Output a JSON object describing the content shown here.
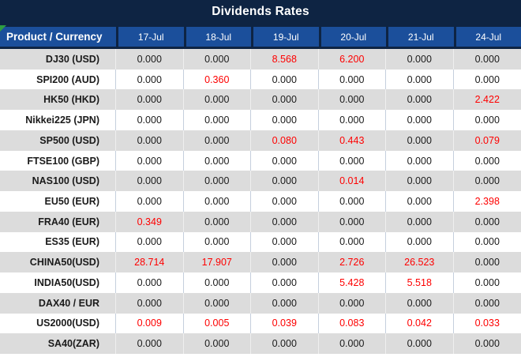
{
  "title": "Dividends Rates",
  "header": {
    "product_label": "Product / Currency",
    "dates": [
      "17-Jul",
      "18-Jul",
      "19-Jul",
      "20-Jul",
      "21-Jul",
      "24-Jul"
    ]
  },
  "rows": [
    {
      "product": "DJ30 (USD)",
      "values": [
        "0.000",
        "0.000",
        "8.568",
        "6.200",
        "0.000",
        "0.000"
      ]
    },
    {
      "product": "SPI200 (AUD)",
      "values": [
        "0.000",
        "0.360",
        "0.000",
        "0.000",
        "0.000",
        "0.000"
      ]
    },
    {
      "product": "HK50 (HKD)",
      "values": [
        "0.000",
        "0.000",
        "0.000",
        "0.000",
        "0.000",
        "2.422"
      ]
    },
    {
      "product": "Nikkei225 (JPN)",
      "values": [
        "0.000",
        "0.000",
        "0.000",
        "0.000",
        "0.000",
        "0.000"
      ]
    },
    {
      "product": "SP500 (USD)",
      "values": [
        "0.000",
        "0.000",
        "0.080",
        "0.443",
        "0.000",
        "0.079"
      ]
    },
    {
      "product": "FTSE100 (GBP)",
      "values": [
        "0.000",
        "0.000",
        "0.000",
        "0.000",
        "0.000",
        "0.000"
      ]
    },
    {
      "product": "NAS100 (USD)",
      "values": [
        "0.000",
        "0.000",
        "0.000",
        "0.014",
        "0.000",
        "0.000"
      ]
    },
    {
      "product": "EU50 (EUR)",
      "values": [
        "0.000",
        "0.000",
        "0.000",
        "0.000",
        "0.000",
        "2.398"
      ]
    },
    {
      "product": "FRA40 (EUR)",
      "values": [
        "0.349",
        "0.000",
        "0.000",
        "0.000",
        "0.000",
        "0.000"
      ]
    },
    {
      "product": "ES35 (EUR)",
      "values": [
        "0.000",
        "0.000",
        "0.000",
        "0.000",
        "0.000",
        "0.000"
      ]
    },
    {
      "product": "CHINA50(USD)",
      "values": [
        "28.714",
        "17.907",
        "0.000",
        "2.726",
        "26.523",
        "0.000"
      ]
    },
    {
      "product": "INDIA50(USD)",
      "values": [
        "0.000",
        "0.000",
        "0.000",
        "5.428",
        "5.518",
        "0.000"
      ]
    },
    {
      "product": "DAX40 / EUR",
      "values": [
        "0.000",
        "0.000",
        "0.000",
        "0.000",
        "0.000",
        "0.000"
      ]
    },
    {
      "product": "US2000(USD)",
      "values": [
        "0.009",
        "0.005",
        "0.039",
        "0.083",
        "0.042",
        "0.033"
      ]
    },
    {
      "product": "SA40(ZAR)",
      "values": [
        "0.000",
        "0.000",
        "0.000",
        "0.000",
        "0.000",
        "0.000"
      ]
    }
  ],
  "colors": {
    "title_bar_navy": "#0E2443",
    "header_cell_blue": "#1B4F9B",
    "row_stripe_gray": "#DCDCDC",
    "nonzero_value_red": "#FE0000",
    "error_indicator_green": "#2E9E41"
  },
  "icons": {
    "error_indicator": "excel-green-corner-triangle"
  }
}
